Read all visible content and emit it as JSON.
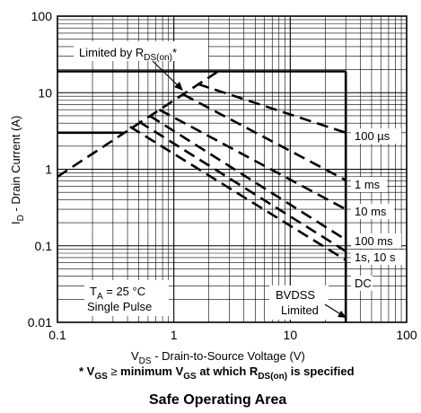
{
  "chart_data": {
    "type": "line",
    "title": "Safe Operating Area",
    "xlabel": {
      "pre": "V",
      "sub": "DS",
      "post": " - Drain-to-Source Voltage (V)"
    },
    "ylabel": {
      "pre": "I",
      "sub": "D",
      "post": " - Drain Current (A)"
    },
    "x_scale": "log",
    "y_scale": "log",
    "xlim": [
      0.1,
      100
    ],
    "ylim": [
      0.01,
      100
    ],
    "grid": true,
    "x_ticks": [
      {
        "value": 0.1,
        "label": "0.1"
      },
      {
        "value": 1,
        "label": "1"
      },
      {
        "value": 10,
        "label": "10"
      },
      {
        "value": 100,
        "label": "100"
      }
    ],
    "y_ticks": [
      {
        "value": 100,
        "label": "100"
      },
      {
        "value": 10,
        "label": "10"
      },
      {
        "value": 1,
        "label": "1"
      },
      {
        "value": 0.1,
        "label": "0.1"
      },
      {
        "value": 0.01,
        "label": "0.01"
      }
    ],
    "boundaries": [
      {
        "id": "rds-on-limit",
        "style": "dashed",
        "points": [
          [
            0.1,
            0.8
          ],
          [
            2.4,
            19
          ]
        ]
      },
      {
        "id": "current-limit-pulsed",
        "style": "solid",
        "points": [
          [
            0.1,
            19
          ],
          [
            30,
            19
          ]
        ]
      },
      {
        "id": "current-limit-dc",
        "style": "solid",
        "points": [
          [
            0.1,
            3
          ],
          [
            0.37,
            3
          ]
        ]
      },
      {
        "id": "bvdss-limit",
        "style": "solid",
        "points": [
          [
            30,
            19
          ],
          [
            30,
            0.01
          ]
        ]
      }
    ],
    "series": [
      {
        "name": "100 µs",
        "style": "dashed",
        "points": [
          [
            1.6,
            13
          ],
          [
            30,
            3.0
          ]
        ]
      },
      {
        "name": "1 ms",
        "style": "dashed",
        "points": [
          [
            1.2,
            9.5
          ],
          [
            30,
            0.72
          ]
        ]
      },
      {
        "name": "10 ms",
        "style": "dashed",
        "points": [
          [
            0.75,
            6.0
          ],
          [
            30,
            0.3
          ]
        ]
      },
      {
        "name": "100 ms",
        "style": "dashed",
        "points": [
          [
            0.62,
            5.0
          ],
          [
            30,
            0.12
          ]
        ]
      },
      {
        "name": "1s, 10 s",
        "style": "dashed",
        "points": [
          [
            0.5,
            4.2
          ],
          [
            30,
            0.085
          ]
        ]
      },
      {
        "name": "DC",
        "style": "dashed",
        "points": [
          [
            0.42,
            3.6
          ],
          [
            30,
            0.065
          ]
        ]
      }
    ],
    "annotations": {
      "rds_label": {
        "pre": "Limited by R",
        "sub": "DS(on)",
        "post": "*"
      },
      "condition_line1": {
        "pre": "T",
        "sub": "A",
        "post": " = 25 °C"
      },
      "condition_line2": "Single Pulse",
      "bvdss_line1": "BVDSS",
      "bvdss_line2": "Limited"
    },
    "footnote": {
      "a": "* V",
      "a_sub": "GS",
      "b": " ",
      "approx": "≥",
      "c": " minimum V",
      "c_sub": "GS",
      "d": " at which R",
      "d_sub": "DS(on)",
      "e": " is specified"
    }
  }
}
